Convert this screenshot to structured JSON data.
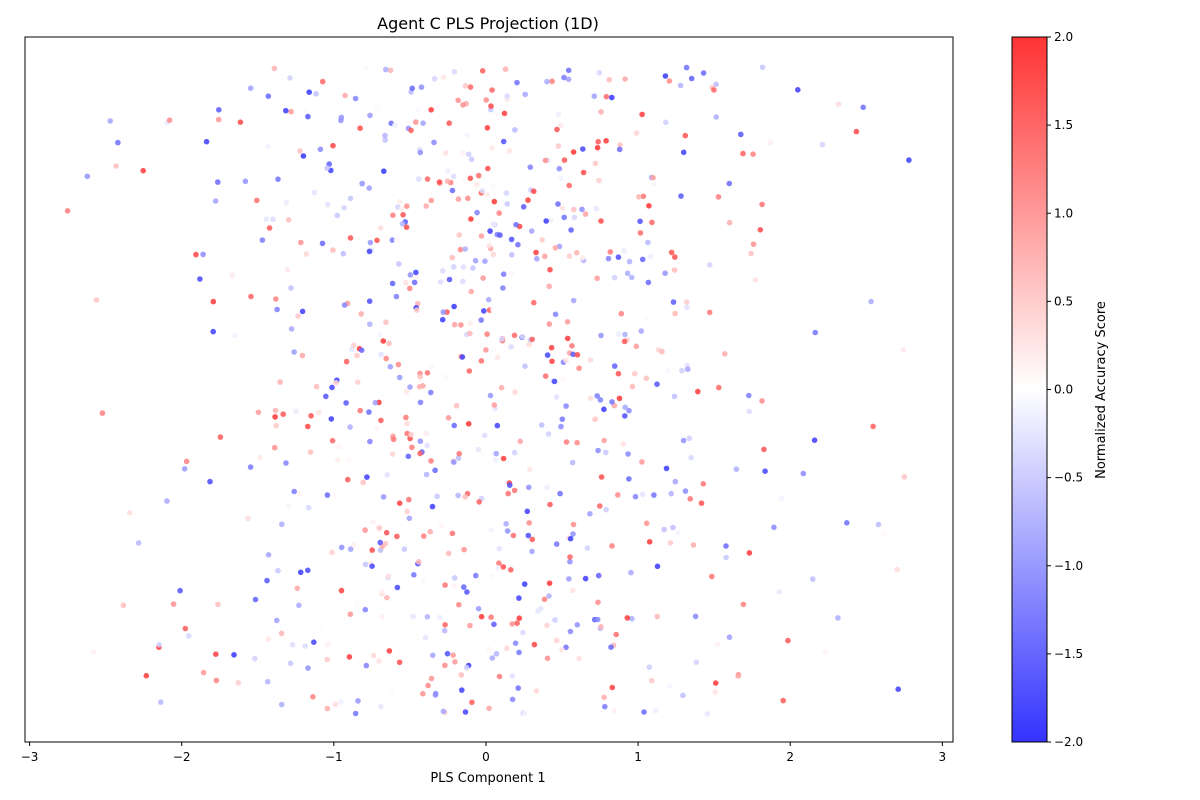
{
  "chart_data": {
    "type": "scatter",
    "title": "Agent C PLS Projection (1D)",
    "xlabel": "PLS Component 1",
    "ylabel": "",
    "xlim": [
      -3.03,
      3.07
    ],
    "xticks": [
      "−3",
      "−2",
      "−1",
      "0",
      "1",
      "2",
      "3"
    ],
    "xtick_values": [
      -3,
      -2,
      -1,
      0,
      1,
      2,
      3
    ],
    "y_axis": "hidden (random vertical jitter, no scale)",
    "point_count": 900,
    "x_distribution": {
      "mean": 0.0,
      "std": 1.0,
      "min": -2.75,
      "max": 2.78
    },
    "color_scale": {
      "label": "Normalized Accuracy Score",
      "vmin": -2.0,
      "vmax": 2.0,
      "ticks": [
        "−2.0",
        "−1.5",
        "−1.0",
        "−0.5",
        "0.0",
        "0.5",
        "1.0",
        "1.5",
        "2.0"
      ],
      "tick_values": [
        -2.0,
        -1.5,
        -1.0,
        -0.5,
        0.0,
        0.5,
        1.0,
        1.5,
        2.0
      ],
      "colors": {
        "low": "#3333ff",
        "mid": "#ffffff",
        "high": "#ff3333"
      },
      "colormap": "bwr"
    },
    "sample_points": [
      {
        "x": -2.75,
        "score": 1.3
      },
      {
        "x": 2.78,
        "score": -1.9
      },
      {
        "x": 2.71,
        "score": -1.9
      },
      {
        "x": 2.48,
        "score": -1.4
      },
      {
        "x": -2.47,
        "score": -0.9
      },
      {
        "x": -2.56,
        "score": 0.6
      },
      {
        "x": 2.75,
        "score": 0.6
      },
      {
        "x": 2.16,
        "score": -1.9
      },
      {
        "x": -2.15,
        "score": 1.9
      },
      {
        "x": 2.05,
        "score": -1.9
      }
    ],
    "grid": false,
    "colorbar_position": "right"
  }
}
